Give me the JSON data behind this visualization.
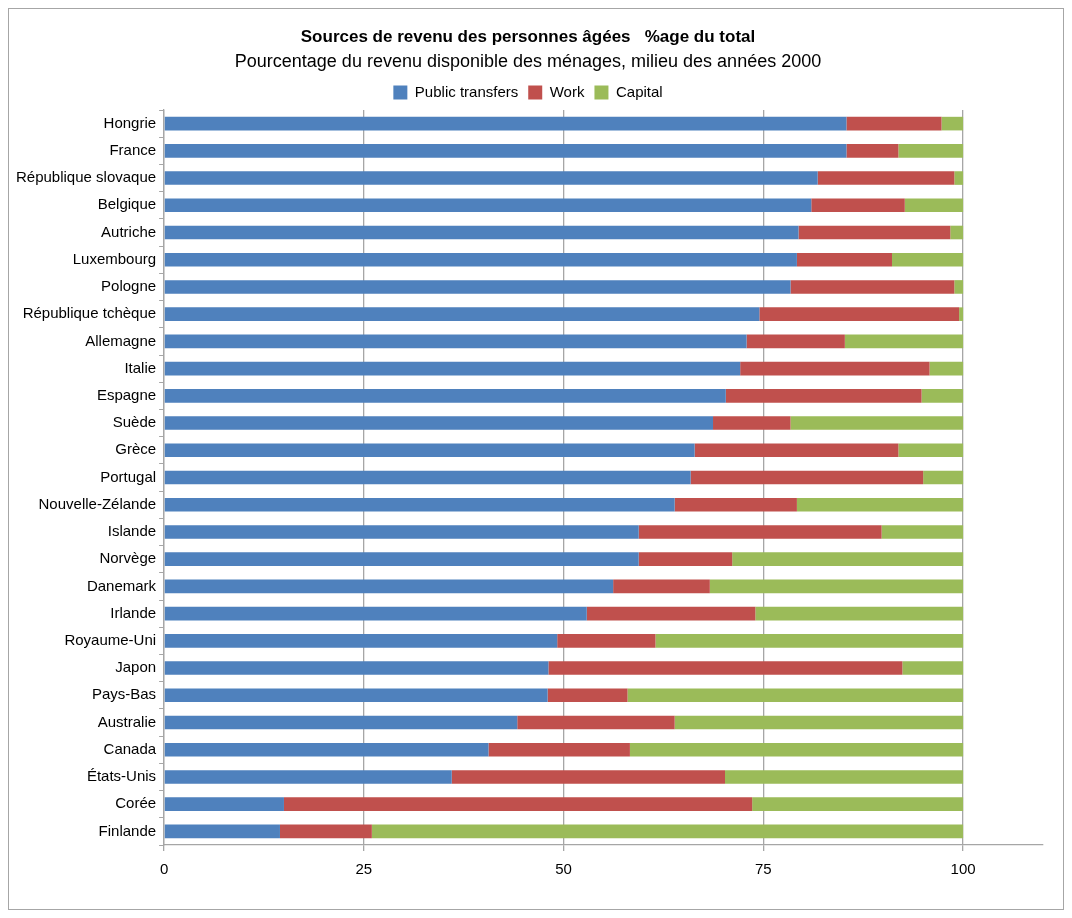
{
  "chart_data": {
    "type": "bar",
    "orientation": "horizontal",
    "stacked": true,
    "title": "Sources de revenu des personnes âgées   %age du total",
    "subtitle": "Pourcentage du revenu disponible des ménages, milieu des années 2000",
    "categories": [
      "Hongrie",
      "France",
      "République slovaque",
      "Belgique",
      "Autriche",
      "Luxembourg",
      "Pologne",
      "République tchèque",
      "Allemagne",
      "Italie",
      "Espagne",
      "Suède",
      "Grèce",
      "Portugal",
      "Nouvelle-Zélande",
      "Islande",
      "Norvège",
      "Danemark",
      "Irlande",
      "Royaume-Uni",
      "Japon",
      "Pays-Bas",
      "Australie",
      "Canada",
      "États-Unis",
      "Corée",
      "Finlande"
    ],
    "series": [
      {
        "name": "Public transfers",
        "color": "#4f81bd",
        "values": [
          85.4,
          85.4,
          81.8,
          81.0,
          79.4,
          79.2,
          78.4,
          74.5,
          72.9,
          72.1,
          70.3,
          68.7,
          66.4,
          65.9,
          63.9,
          59.4,
          59.4,
          56.2,
          52.9,
          49.2,
          48.1,
          48.0,
          44.2,
          40.6,
          36.0,
          15.0,
          14.5
        ]
      },
      {
        "name": "Work",
        "color": "#c0504d",
        "values": [
          11.9,
          6.5,
          17.1,
          11.7,
          19.0,
          11.9,
          20.5,
          25.0,
          12.3,
          23.7,
          24.5,
          9.7,
          25.5,
          29.1,
          15.3,
          30.4,
          11.7,
          12.1,
          21.1,
          12.3,
          44.3,
          10.0,
          19.7,
          17.7,
          34.2,
          58.6,
          11.5
        ]
      },
      {
        "name": "Capital",
        "color": "#9bbb59",
        "values": [
          2.7,
          8.1,
          1.1,
          7.3,
          1.6,
          8.9,
          1.1,
          0.5,
          14.8,
          4.2,
          5.2,
          21.6,
          8.1,
          5.0,
          20.8,
          10.2,
          28.9,
          31.7,
          26.0,
          38.5,
          7.6,
          42.0,
          36.1,
          41.7,
          29.8,
          26.4,
          74.0
        ]
      }
    ],
    "xlim": [
      0,
      110
    ],
    "xticks": [
      0,
      25,
      50,
      75,
      100
    ],
    "grid": "x",
    "legend": "top"
  }
}
